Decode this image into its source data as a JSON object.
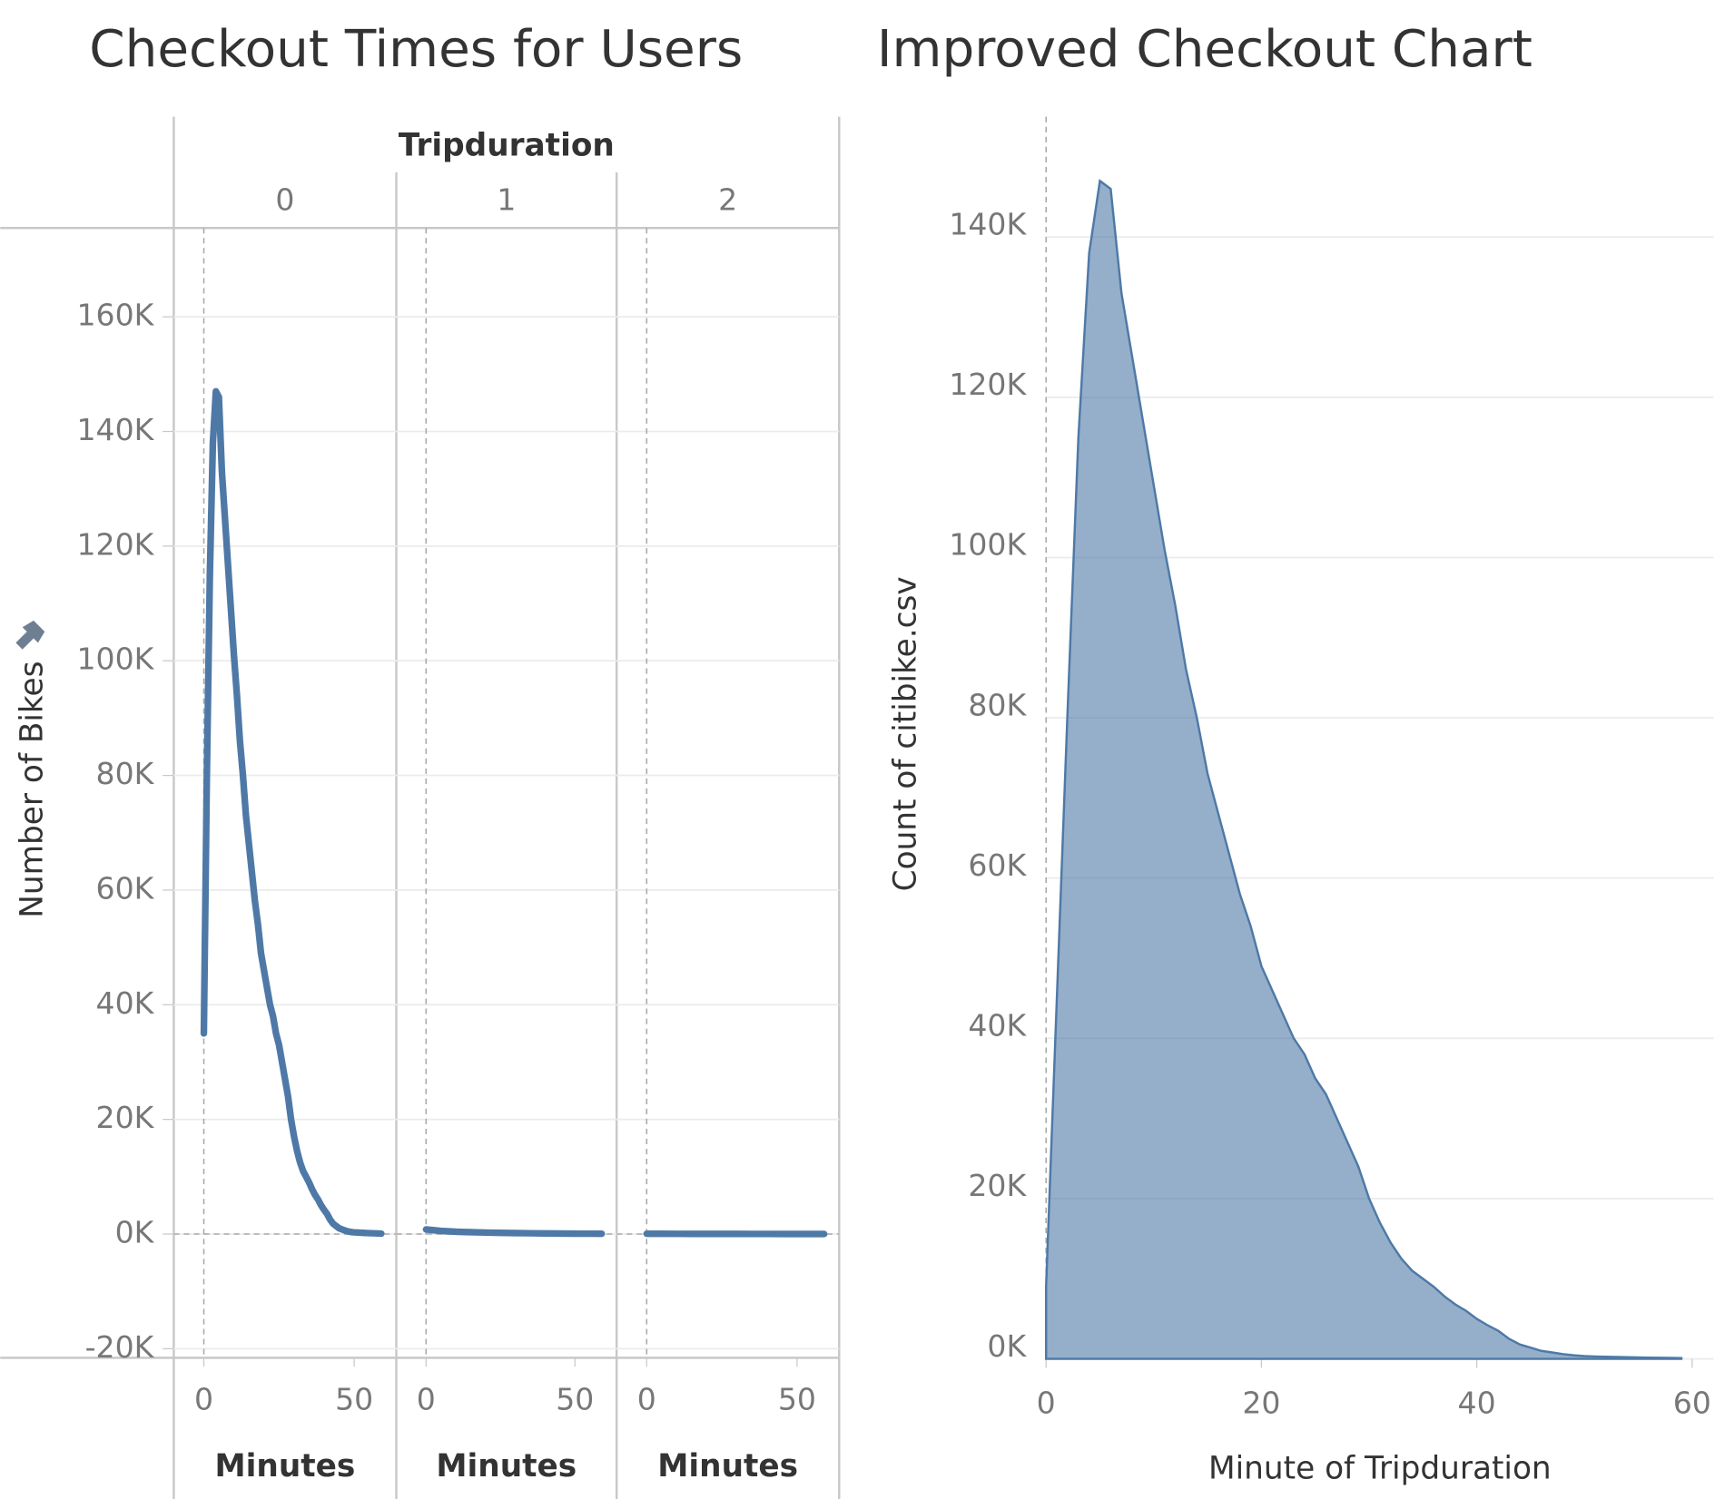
{
  "chart_data": [
    {
      "type": "line",
      "title": "Checkout Times for Users",
      "facet_label": "Tripduration",
      "y_label": "Number of Bikes",
      "x_label": "Minutes",
      "color": "#4e79a7",
      "xlim": [
        -10,
        64
      ],
      "xticks": [
        0,
        50
      ],
      "ylim": [
        -21000,
        175500
      ],
      "yticks": [
        {
          "value": -20000,
          "label": "-20K"
        },
        {
          "value": 0,
          "label": "0K"
        },
        {
          "value": 20000,
          "label": "20K"
        },
        {
          "value": 40000,
          "label": "40K"
        },
        {
          "value": 60000,
          "label": "60K"
        },
        {
          "value": 80000,
          "label": "80K"
        },
        {
          "value": 100000,
          "label": "100K"
        },
        {
          "value": 120000,
          "label": "120K"
        },
        {
          "value": 140000,
          "label": "140K"
        },
        {
          "value": 160000,
          "label": "160K"
        }
      ],
      "panels": [
        {
          "label": "0",
          "x": [
            0,
            1,
            2,
            3,
            4,
            5,
            6,
            7,
            8,
            9,
            10,
            11,
            12,
            13,
            14,
            15,
            16,
            17,
            18,
            19,
            20,
            21,
            22,
            23,
            24,
            25,
            26,
            27,
            28,
            29,
            30,
            31,
            32,
            33,
            34,
            35,
            36,
            37,
            38,
            39,
            40,
            41,
            42,
            43,
            44,
            45,
            46,
            47,
            48,
            49,
            50,
            51,
            52,
            53,
            54,
            55,
            56,
            57,
            58,
            59
          ],
          "values": [
            35000,
            80000,
            115000,
            138000,
            147000,
            146000,
            133000,
            125000,
            117000,
            109000,
            101000,
            94000,
            86000,
            80000,
            73000,
            68000,
            63000,
            58000,
            54000,
            49000,
            46000,
            43000,
            40000,
            38000,
            35000,
            33000,
            30000,
            27000,
            24000,
            20000,
            17000,
            14500,
            12500,
            11000,
            10000,
            9000,
            7800,
            6800,
            6000,
            5000,
            4200,
            3500,
            2500,
            1800,
            1400,
            1000,
            800,
            600,
            450,
            350,
            300,
            270,
            240,
            210,
            180,
            160,
            140,
            120,
            100,
            80
          ]
        },
        {
          "label": "1",
          "x": [
            0,
            5,
            10,
            15,
            20,
            25,
            30,
            35,
            40,
            45,
            50,
            55,
            59
          ],
          "values": [
            800,
            550,
            400,
            320,
            260,
            210,
            170,
            140,
            110,
            90,
            70,
            60,
            50
          ]
        },
        {
          "label": "2",
          "x": [
            0,
            5,
            10,
            15,
            20,
            25,
            30,
            35,
            40,
            45,
            50,
            55,
            59
          ],
          "values": [
            50,
            45,
            40,
            36,
            32,
            28,
            25,
            22,
            20,
            18,
            15,
            12,
            10
          ]
        }
      ]
    },
    {
      "type": "area",
      "title": "Improved Checkout Chart",
      "x_label": "Minute of Tripduration",
      "y_label": "Count of citibike.csv",
      "color": "#4e79a7",
      "xlim": [
        0,
        62
      ],
      "xticks": [
        0,
        20,
        40,
        60
      ],
      "ylim": [
        0,
        155000
      ],
      "yticks": [
        {
          "value": 0,
          "label": "0K"
        },
        {
          "value": 20000,
          "label": "20K"
        },
        {
          "value": 40000,
          "label": "40K"
        },
        {
          "value": 60000,
          "label": "60K"
        },
        {
          "value": 80000,
          "label": "80K"
        },
        {
          "value": 100000,
          "label": "100K"
        },
        {
          "value": 120000,
          "label": "120K"
        },
        {
          "value": 140000,
          "label": "140K"
        }
      ],
      "x": [
        0,
        1,
        2,
        3,
        4,
        5,
        6,
        7,
        8,
        9,
        10,
        11,
        12,
        13,
        14,
        15,
        16,
        17,
        18,
        19,
        20,
        21,
        22,
        23,
        24,
        25,
        26,
        27,
        28,
        29,
        30,
        31,
        32,
        33,
        34,
        35,
        36,
        37,
        38,
        39,
        40,
        41,
        42,
        43,
        44,
        45,
        46,
        47,
        48,
        49,
        50,
        51,
        52,
        53,
        54,
        55,
        56,
        57,
        58,
        59
      ],
      "values": [
        9000,
        45000,
        81000,
        115000,
        138000,
        147000,
        146000,
        133000,
        125000,
        117000,
        109000,
        101000,
        94000,
        86000,
        80000,
        73000,
        68000,
        63000,
        58000,
        54000,
        49000,
        46000,
        43000,
        40000,
        38000,
        35000,
        33000,
        30000,
        27000,
        24000,
        20000,
        17000,
        14500,
        12500,
        11000,
        10000,
        9000,
        7800,
        6800,
        6000,
        5000,
        4200,
        3500,
        2500,
        1800,
        1400,
        1000,
        800,
        600,
        450,
        350,
        300,
        270,
        240,
        210,
        180,
        160,
        140,
        120,
        100
      ]
    }
  ]
}
